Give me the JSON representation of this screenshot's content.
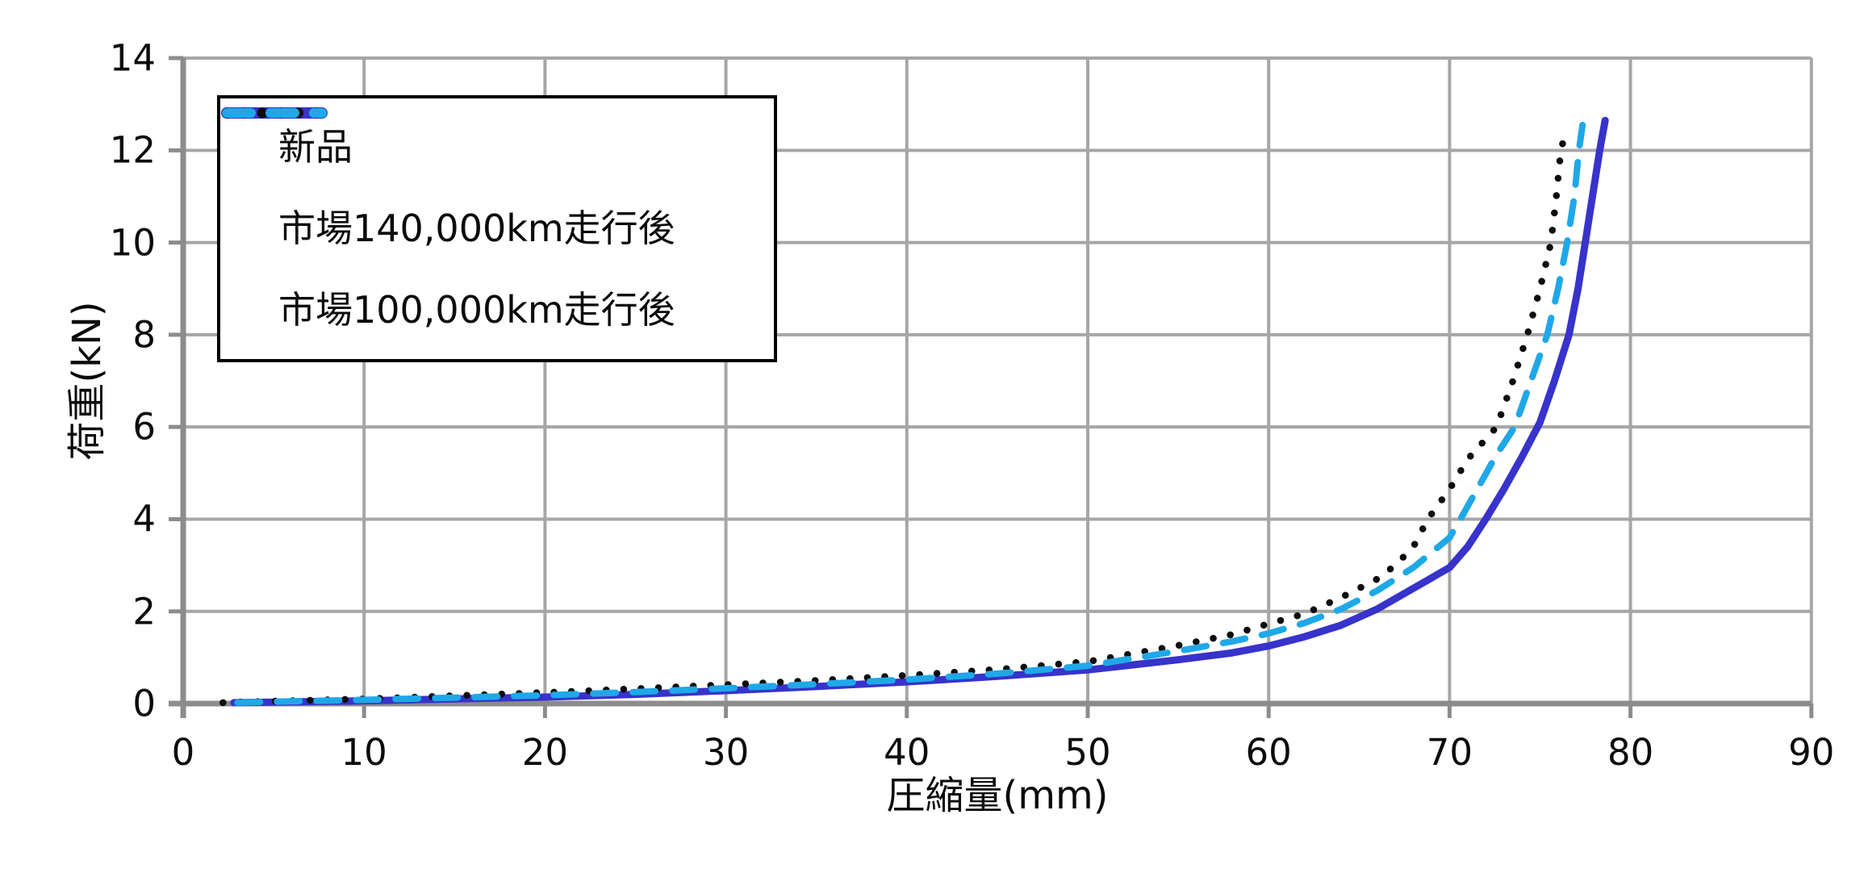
{
  "chart_data": {
    "type": "line",
    "title": "",
    "xlabel": "圧縮量(mm)",
    "ylabel": "荷重(kN)",
    "xlim": [
      0,
      90
    ],
    "ylim": [
      0,
      14
    ],
    "xticks": [
      0,
      10,
      20,
      30,
      40,
      50,
      60,
      70,
      80,
      90
    ],
    "yticks": [
      0,
      2,
      4,
      6,
      8,
      10,
      12,
      14
    ],
    "grid": true,
    "legend_position": "top-left-inside",
    "colors": {
      "grid": "#A6A6A6",
      "axis": "#8C8C8C",
      "text": "#0b0b0b",
      "background": "#ffffff",
      "legend_border": "#000000"
    },
    "series": [
      {
        "name": "新品",
        "style": "solid",
        "color": "#3733CB",
        "points": [
          [
            2.8,
            0.02
          ],
          [
            5,
            0.03
          ],
          [
            10,
            0.06
          ],
          [
            15,
            0.1
          ],
          [
            20,
            0.14
          ],
          [
            25,
            0.2
          ],
          [
            30,
            0.28
          ],
          [
            35,
            0.37
          ],
          [
            40,
            0.47
          ],
          [
            45,
            0.59
          ],
          [
            50,
            0.73
          ],
          [
            55,
            0.95
          ],
          [
            58,
            1.1
          ],
          [
            60,
            1.25
          ],
          [
            62,
            1.45
          ],
          [
            64,
            1.7
          ],
          [
            66,
            2.05
          ],
          [
            68,
            2.5
          ],
          [
            70,
            2.95
          ],
          [
            71,
            3.4
          ],
          [
            72,
            4.0
          ],
          [
            73,
            4.65
          ],
          [
            74,
            5.35
          ],
          [
            75,
            6.1
          ],
          [
            75.8,
            7.0
          ],
          [
            76.6,
            8.0
          ],
          [
            77.1,
            9.0
          ],
          [
            77.5,
            10.0
          ],
          [
            77.9,
            11.0
          ],
          [
            78.3,
            12.0
          ],
          [
            78.6,
            12.65
          ]
        ]
      },
      {
        "name": "市場140,000km走行後",
        "style": "dotted",
        "color": "#0d0d0d",
        "points": [
          [
            2.2,
            0.02
          ],
          [
            5,
            0.05
          ],
          [
            10,
            0.1
          ],
          [
            15,
            0.17
          ],
          [
            20,
            0.24
          ],
          [
            25,
            0.32
          ],
          [
            30,
            0.41
          ],
          [
            35,
            0.5
          ],
          [
            40,
            0.61
          ],
          [
            45,
            0.74
          ],
          [
            50,
            0.91
          ],
          [
            55,
            1.26
          ],
          [
            58,
            1.5
          ],
          [
            60,
            1.73
          ],
          [
            62,
            1.95
          ],
          [
            64,
            2.3
          ],
          [
            66,
            2.7
          ],
          [
            67,
            3.0
          ],
          [
            68,
            3.4
          ],
          [
            68.8,
            4.0
          ],
          [
            70,
            4.65
          ],
          [
            71,
            5.3
          ],
          [
            72.6,
            6.0
          ],
          [
            73.5,
            7.0
          ],
          [
            74.3,
            8.0
          ],
          [
            75.0,
            9.0
          ],
          [
            75.6,
            10.0
          ],
          [
            75.9,
            11.0
          ],
          [
            76.15,
            12.0
          ],
          [
            76.35,
            12.3
          ]
        ]
      },
      {
        "name": "市場100,000km走行後",
        "style": "dashed",
        "color": "#1FA8E8",
        "points": [
          [
            3,
            0.02
          ],
          [
            5,
            0.04
          ],
          [
            10,
            0.08
          ],
          [
            15,
            0.13
          ],
          [
            20,
            0.18
          ],
          [
            25,
            0.25
          ],
          [
            30,
            0.33
          ],
          [
            35,
            0.42
          ],
          [
            40,
            0.52
          ],
          [
            45,
            0.65
          ],
          [
            50,
            0.82
          ],
          [
            55,
            1.14
          ],
          [
            58,
            1.35
          ],
          [
            60,
            1.52
          ],
          [
            62,
            1.75
          ],
          [
            64,
            2.05
          ],
          [
            66,
            2.45
          ],
          [
            68,
            2.95
          ],
          [
            70,
            3.6
          ],
          [
            70.6,
            4.0
          ],
          [
            71.6,
            4.7
          ],
          [
            72.6,
            5.4
          ],
          [
            73.6,
            6.0
          ],
          [
            74.5,
            7.0
          ],
          [
            75.4,
            8.0
          ],
          [
            76.0,
            9.0
          ],
          [
            76.5,
            10.0
          ],
          [
            76.9,
            11.0
          ],
          [
            77.15,
            12.0
          ],
          [
            77.35,
            12.55
          ]
        ]
      }
    ]
  }
}
